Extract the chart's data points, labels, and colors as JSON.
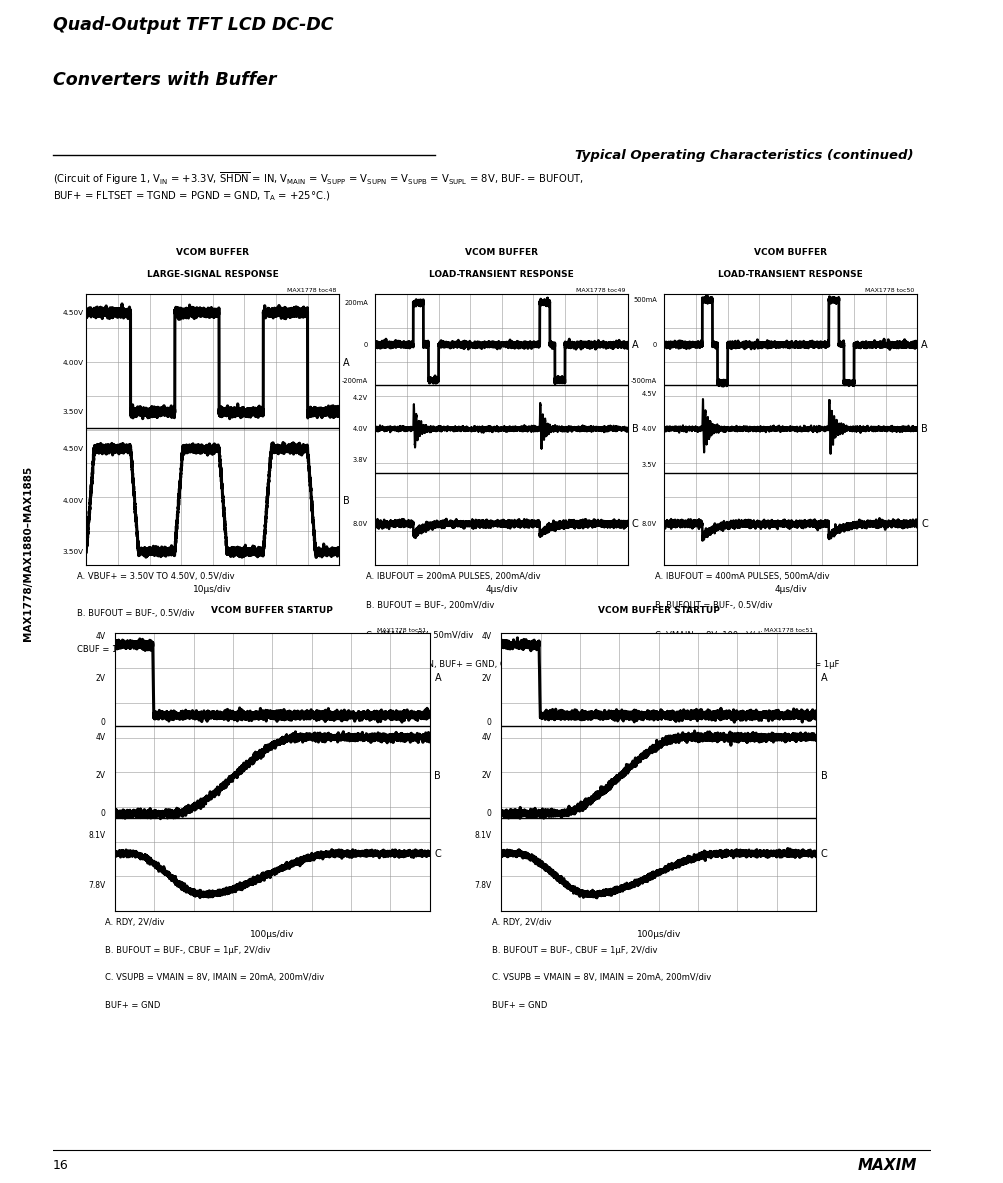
{
  "page_bg": "#ffffff",
  "sidebar_text": "MAX1778/MAX1880–MAX1885",
  "title_line1": "Quad-Output TFT LCD DC-DC",
  "title_line2": "Converters with Buffer",
  "section_title": "Typical Operating Characteristics (continued)",
  "subtitle_line1": "(Circuit of Figure 1, V",
  "subtitle_line2": "BUF+ = FLTSET = TGND = PGND = GND, T",
  "page_num": "16",
  "plots_row1": [
    {
      "title": "VCOM BUFFER\nLARGE-SIGNAL RESPONSE",
      "tag": "MAX1778 toc48",
      "xlabel": "10μs/div",
      "notes": [
        "A. VBUF+ = 3.50V TO 4.50V, 0.5V/div",
        "B. BUFOUT = BUF-, 0.5V/div",
        "CBUF = 1μF, VSUPB = 8V"
      ],
      "panels": 2,
      "yticks_top": [
        "4.50V",
        "4.00V",
        "3.50V"
      ],
      "yticks_bot": [
        "4.50V",
        "4.00V",
        "3.50V"
      ],
      "chan_labels": [
        "A",
        "B"
      ]
    },
    {
      "title": "VCOM BUFFER\nLOAD-TRANSIENT RESPONSE",
      "tag": "MAX1778 toc49",
      "xlabel": "4μs/div",
      "notes": [
        "A. IBUFOUT = 200mA PULSES, 200mA/div",
        "B. BUFOUT = BUF-, 200mV/div",
        "C. VMAIN = 8V, 50mV/div",
        "VSUPB = VMAIN, BUF+ = GND, CBUF = 1μF"
      ],
      "panels": 3,
      "yticks_top": [
        "200mA",
        "0",
        "-200mA"
      ],
      "yticks_mid": [
        "4.2V",
        "4.0V",
        "3.8V"
      ],
      "yticks_bot": [
        "8.0V"
      ],
      "chan_labels": [
        "A",
        "B",
        "C"
      ]
    },
    {
      "title": "VCOM BUFFER\nLOAD-TRANSIENT RESPONSE",
      "tag": "MAX1778 toc50",
      "xlabel": "4μs/div",
      "notes": [
        "A. IBUFOUT = 400mA PULSES, 500mA/div",
        "B. BUFOUT = BUF-, 0.5V/div",
        "C. VMAIN = 8V, 100mV/div",
        "VSUPB = VMAIN, BUF+ = GND, CBUF = 1μF"
      ],
      "panels": 3,
      "yticks_top": [
        "500mA",
        "0",
        "-500mA"
      ],
      "yticks_mid": [
        "4.5V",
        "4.0V",
        "3.5V"
      ],
      "yticks_bot": [
        "8.0V"
      ],
      "chan_labels": [
        "A",
        "B",
        "C"
      ]
    }
  ],
  "plots_row2": [
    {
      "title": "VCOM BUFFER STARTUP",
      "tag": "MAX1778 toc51",
      "xlabel": "100μs/div",
      "notes": [
        "A. RDY, 2V/div",
        "B. BUFOUT = BUF-, CBUF = 1μF, 2V/div",
        "C. VSUPB = VMAIN = 8V, IMAIN = 20mA, 200mV/div",
        "BUF+ = GND"
      ],
      "yticks_top": [
        "4V",
        "2V",
        "0"
      ],
      "yticks_mid": [
        "4V",
        "2V",
        "0"
      ],
      "yticks_bot": [
        "8.1V",
        "7.8V"
      ],
      "chan_labels": [
        "A",
        "B",
        "C"
      ]
    },
    {
      "title": "VCOM BUFFER STARTUP",
      "tag": "MAX1778 toc51",
      "xlabel": "100μs/div",
      "notes": [
        "A. RDY, 2V/div",
        "B. BUFOUT = BUF-, CBUF = 1μF, 2V/div",
        "C. VSUPB = VMAIN = 8V, IMAIN = 20mA, 200mV/div",
        "BUF+ = GND"
      ],
      "yticks_top": [
        "4V",
        "2V",
        "0"
      ],
      "yticks_mid": [
        "4V",
        "2V",
        "0"
      ],
      "yticks_bot": [
        "8.1V",
        "7.8V"
      ],
      "chan_labels": [
        "A",
        "B",
        "C"
      ]
    }
  ]
}
